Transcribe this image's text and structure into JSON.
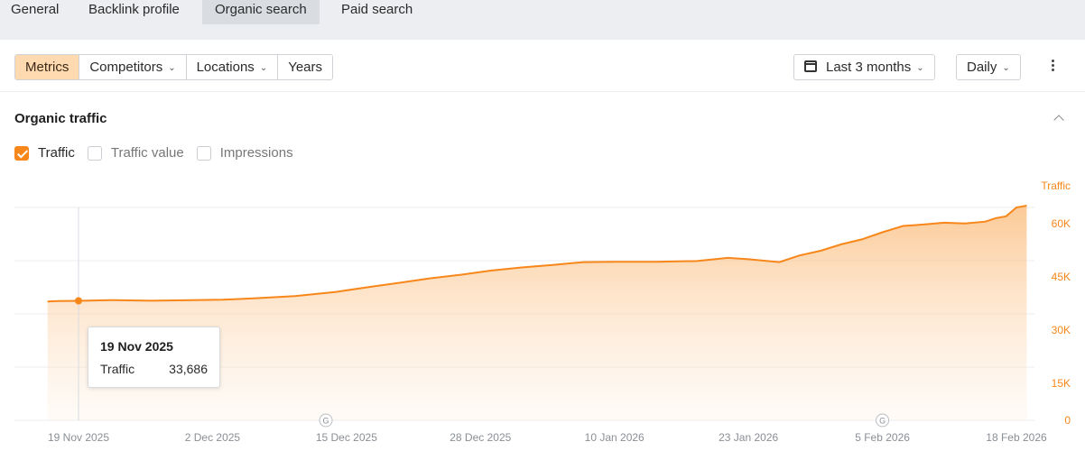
{
  "nav": {
    "tabs": [
      {
        "label": "General"
      },
      {
        "label": "Backlink profile"
      },
      {
        "label": "Organic search",
        "active": true
      },
      {
        "label": "Paid search"
      }
    ]
  },
  "toolbar": {
    "segments": [
      "Metrics",
      "Competitors",
      "Locations",
      "Years"
    ],
    "active_segment": "Metrics",
    "date_range": "Last 3 months",
    "granularity": "Daily"
  },
  "card": {
    "title": "Organic traffic",
    "metrics": [
      {
        "label": "Traffic",
        "checked": true
      },
      {
        "label": "Traffic value",
        "checked": false
      },
      {
        "label": "Impressions",
        "checked": false
      }
    ]
  },
  "tooltip": {
    "date": "19 Nov 2025",
    "label": "Traffic",
    "value": "33,686"
  },
  "colors": {
    "accent": "#f7871a",
    "accent_light": "#ffd9b0"
  },
  "chart_data": {
    "type": "area",
    "series": [
      {
        "name": "Traffic",
        "x": [
          "16 Nov 2025",
          "17 Nov 2025",
          "19 Nov 2025",
          "22 Nov 2025",
          "26 Nov 2025",
          "30 Nov 2025",
          "3 Dec 2025",
          "6 Dec 2025",
          "10 Dec 2025",
          "14 Dec 2025",
          "17 Dec 2025",
          "20 Dec 2025",
          "23 Dec 2025",
          "26 Dec 2025",
          "29 Dec 2025",
          "1 Jan 2026",
          "4 Jan 2026",
          "7 Jan 2026",
          "10 Jan 2026",
          "14 Jan 2026",
          "18 Jan 2026",
          "21 Jan 2026",
          "23 Jan 2026",
          "26 Jan 2026",
          "28 Jan 2026",
          "30 Jan 2026",
          "1 Feb 2026",
          "3 Feb 2026",
          "5 Feb 2026",
          "7 Feb 2026",
          "9 Feb 2026",
          "11 Feb 2026",
          "13 Feb 2026",
          "15 Feb 2026",
          "16 Feb 2026",
          "17 Feb 2026",
          "18 Feb 2026",
          "19 Feb 2026"
        ],
        "values": [
          33500,
          33600,
          33686,
          33900,
          33700,
          33900,
          34000,
          34400,
          35000,
          36200,
          37500,
          38700,
          40000,
          41000,
          42200,
          43100,
          43800,
          44600,
          44700,
          44700,
          44900,
          45800,
          45400,
          44600,
          46500,
          47800,
          49600,
          51000,
          53000,
          54800,
          55200,
          55700,
          55500,
          56000,
          57000,
          57500,
          60000,
          60500
        ]
      }
    ],
    "x_ticks": [
      "19 Nov 2025",
      "2 Dec 2025",
      "15 Dec 2025",
      "28 Dec 2025",
      "10 Jan 2026",
      "23 Jan 2026",
      "5 Feb 2026",
      "18 Feb 2026"
    ],
    "y_ticks": [
      "0",
      "15K",
      "30K",
      "45K",
      "60K"
    ],
    "ylabel": "Traffic",
    "ylim": [
      0,
      60000
    ],
    "grid": true,
    "annotations": [
      "G",
      "G"
    ]
  }
}
